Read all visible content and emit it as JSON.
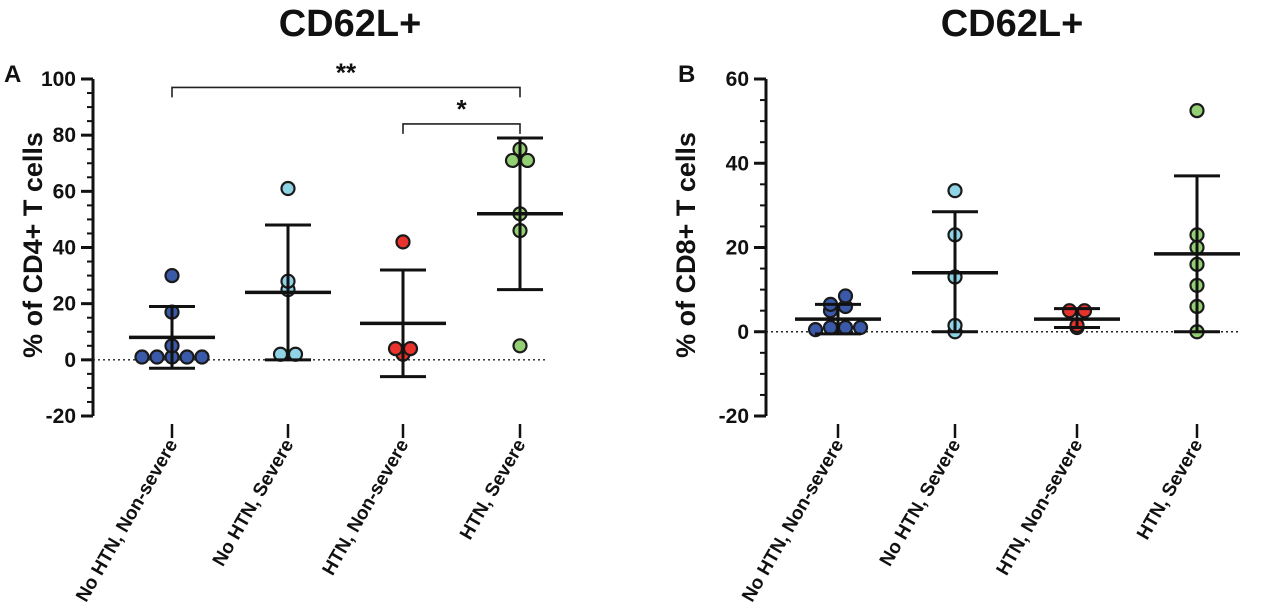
{
  "chart_data": [
    {
      "type": "scatter",
      "panel": "A",
      "title": "CD62L+",
      "ylabel": "% of CD4+ T cells",
      "ylim": [
        -20,
        100
      ],
      "yticks": [
        -20,
        0,
        20,
        40,
        60,
        80,
        100
      ],
      "yticklabels": [
        "-20",
        "0",
        "20",
        "40",
        "60",
        "80",
        "100"
      ],
      "reference_line": 0,
      "categories": [
        "No HTN, Non-severe",
        "No HTN, Severe",
        "HTN, Non-severe",
        "HTN, Severe"
      ],
      "colors": [
        "#3a59a8",
        "#8fd3e6",
        "#e8322c",
        "#93cf73"
      ],
      "groups": [
        {
          "name": "No HTN, Non-severe",
          "points": [
            1,
            1,
            1,
            1,
            1,
            5,
            17,
            30
          ],
          "mean": 8,
          "sd_low": -3,
          "sd_high": 19
        },
        {
          "name": "No HTN, Severe",
          "points": [
            2,
            2,
            25,
            28,
            61
          ],
          "mean": 24,
          "sd_low": 0,
          "sd_high": 48
        },
        {
          "name": "HTN, Non-severe",
          "points": [
            2,
            4,
            4,
            42
          ],
          "mean": 13,
          "sd_low": -6,
          "sd_high": 32
        },
        {
          "name": "HTN, Severe",
          "points": [
            5,
            46,
            52,
            71,
            71,
            75
          ],
          "mean": 52,
          "sd_low": 25,
          "sd_high": 79
        }
      ],
      "significance": [
        {
          "from": "No HTN, Non-severe",
          "to": "HTN, Severe",
          "label": "**",
          "y": 97
        },
        {
          "from": "HTN, Non-severe",
          "to": "HTN, Severe",
          "label": "*",
          "y": 84
        }
      ]
    },
    {
      "type": "scatter",
      "panel": "B",
      "title": "CD62L+",
      "ylabel": "% of CD8+ T cells",
      "ylim": [
        -20,
        60
      ],
      "yticks": [
        -20,
        0,
        20,
        40,
        60
      ],
      "yticklabels": [
        "-20",
        "0",
        "20",
        "40",
        "60"
      ],
      "reference_line": 0,
      "categories": [
        "No HTN, Non-severe",
        "No HTN, Severe",
        "HTN, Non-severe",
        "HTN, Severe"
      ],
      "colors": [
        "#3a59a8",
        "#8fd3e6",
        "#e8322c",
        "#93cf73"
      ],
      "groups": [
        {
          "name": "No HTN, Non-severe",
          "points": [
            0.5,
            1,
            1,
            1,
            5,
            6.5,
            6,
            8.5
          ],
          "mean": 3,
          "sd_low": -0.5,
          "sd_high": 6.5
        },
        {
          "name": "No HTN, Severe",
          "points": [
            0,
            1.5,
            13,
            23,
            33.5
          ],
          "mean": 14,
          "sd_low": 0,
          "sd_high": 28.5
        },
        {
          "name": "HTN, Non-severe",
          "points": [
            1,
            1.5,
            5,
            5
          ],
          "mean": 3,
          "sd_low": 1,
          "sd_high": 5.5
        },
        {
          "name": "HTN, Severe",
          "points": [
            0,
            6,
            11,
            16,
            20,
            23,
            52.5
          ],
          "mean": 18.5,
          "sd_low": 0,
          "sd_high": 37
        }
      ],
      "significance": []
    }
  ]
}
